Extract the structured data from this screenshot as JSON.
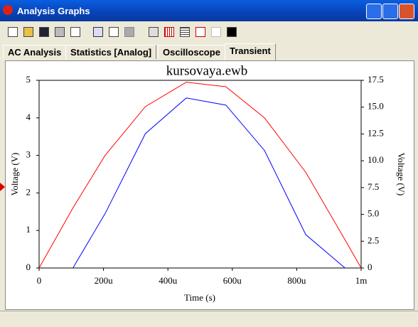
{
  "window": {
    "title": "Analysis Graphs"
  },
  "tabs": [
    "AC Analysis",
    "Statistics [Analog]",
    "Oscilloscope",
    "Transient"
  ],
  "chart_data": {
    "type": "line",
    "title": "kursovaya.ewb",
    "x_label": "Time (s)",
    "y_label": "Voltage (V)",
    "y2_label": "Voltage (V)",
    "x": [
      0,
      0.000105,
      0.000205,
      0.00033,
      0.000457,
      0.00058,
      0.0007,
      0.000828,
      0.00095,
      0.001
    ],
    "series": [
      {
        "color": "#ff0000",
        "values": [
          0,
          1.6,
          3.0,
          4.3,
          4.95,
          4.83,
          4.0,
          2.55,
          0.75,
          0
        ]
      },
      {
        "color": "#0000ff",
        "values": [
          null,
          0,
          1.45,
          3.58,
          4.53,
          4.34,
          3.13,
          0.89,
          0,
          null
        ]
      }
    ],
    "xlim": [
      0,
      0.001
    ],
    "xticks": [
      {
        "value": 0,
        "label": "0"
      },
      {
        "value": 0.0002,
        "label": "200u"
      },
      {
        "value": 0.0004,
        "label": "400u"
      },
      {
        "value": 0.0006,
        "label": "600u"
      },
      {
        "value": 0.0008,
        "label": "800u"
      },
      {
        "value": 0.001,
        "label": "1m"
      }
    ],
    "ylim": [
      0,
      5
    ],
    "yticks": [
      0,
      1,
      2,
      3,
      4,
      5
    ],
    "y2lim": [
      0,
      17.5
    ],
    "y2ticks": [
      0,
      2.5,
      {
        "value": 5,
        "label": "5.0"
      },
      7.5,
      {
        "value": 10,
        "label": "10.0"
      },
      12.5,
      {
        "value": 15,
        "label": "15.0"
      },
      17.5
    ]
  }
}
